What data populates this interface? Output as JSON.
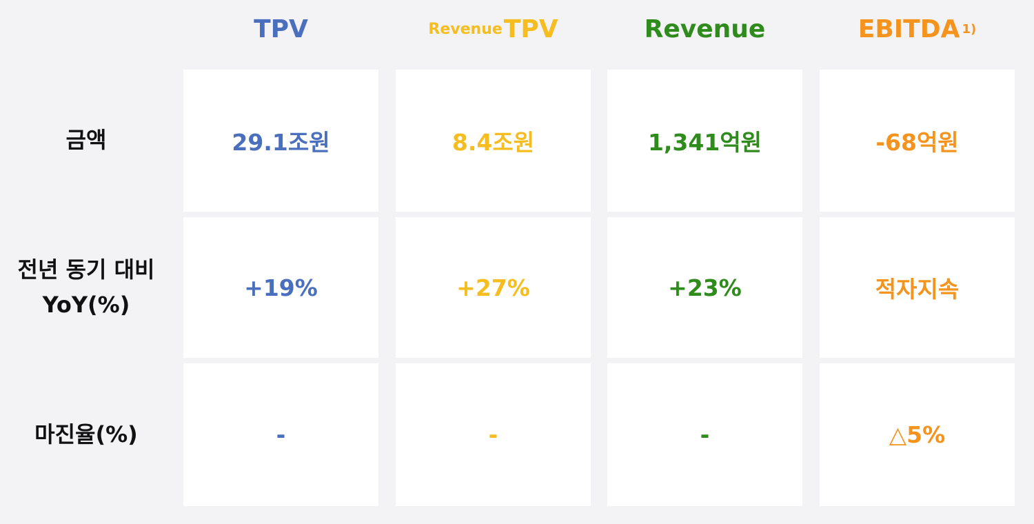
{
  "headers": {
    "tpv": "TPV",
    "revenue_tpv_prefix": "Revenue",
    "revenue_tpv_main": "TPV",
    "revenue": "Revenue",
    "ebitda": "EBITDA",
    "ebitda_footnote": "1)"
  },
  "rows": {
    "amount": {
      "label": "금액",
      "tpv": "29.1조원",
      "revenue_tpv": "8.4조원",
      "revenue": "1,341억원",
      "ebitda": "-68억원"
    },
    "yoy": {
      "label_line1": "전년 동기 대비",
      "label_line2": "YoY(%)",
      "tpv": "+19%",
      "revenue_tpv": "+27%",
      "revenue": "+23%",
      "ebitda": "적자지속"
    },
    "margin": {
      "label": "마진율(%)",
      "tpv": "-",
      "revenue_tpv": "-",
      "revenue": "-",
      "ebitda": "△5%"
    }
  },
  "colors": {
    "tpv": "#4a6fbd",
    "revenue_tpv": "#f5bd1f",
    "revenue": "#2e8b1c",
    "ebitda": "#f4941e"
  }
}
